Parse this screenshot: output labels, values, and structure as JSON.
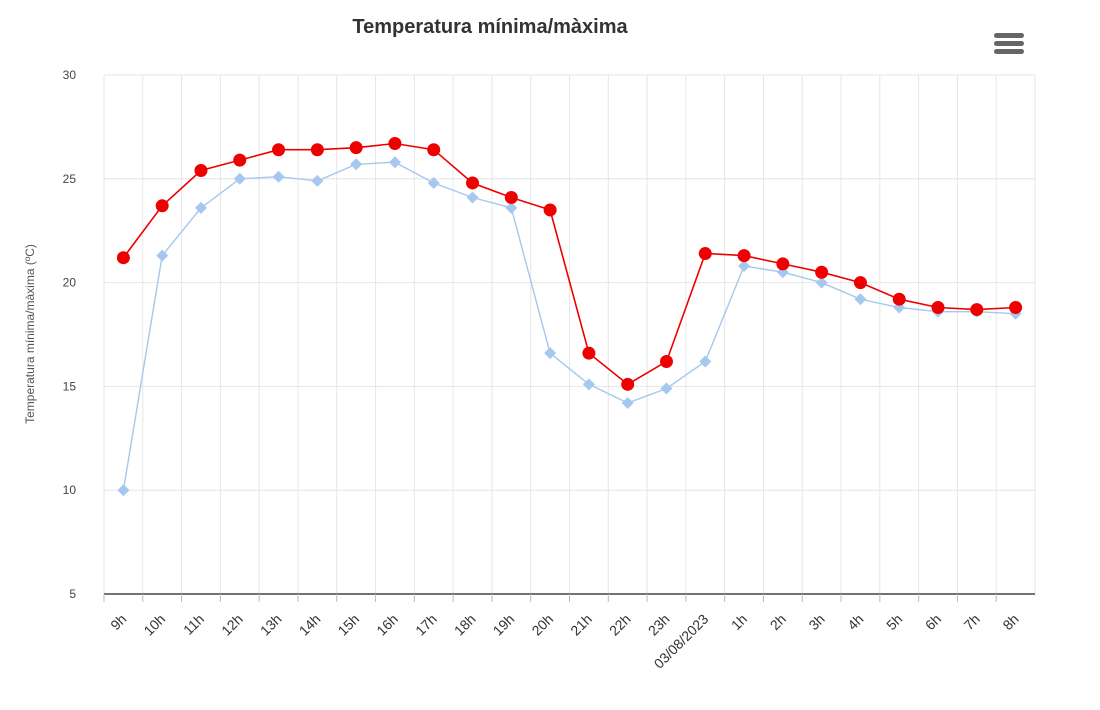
{
  "chart_data": {
    "type": "line",
    "title": "Temperatura mínima/màxima",
    "ylabel": "Temperatura mínima/màxima (ºC)",
    "xlabel": "",
    "ylim": [
      5,
      30
    ],
    "yticks": [
      5,
      10,
      15,
      20,
      25,
      30
    ],
    "grid": true,
    "categories": [
      "9h",
      "10h",
      "11h",
      "12h",
      "13h",
      "14h",
      "15h",
      "16h",
      "17h",
      "18h",
      "19h",
      "20h",
      "21h",
      "22h",
      "23h",
      "03/08/2023",
      "1h",
      "2h",
      "3h",
      "4h",
      "5h",
      "6h",
      "7h",
      "8h"
    ],
    "series": [
      {
        "name": "",
        "color": "#ee0000",
        "marker": "circle",
        "values": [
          21.2,
          23.7,
          25.4,
          25.9,
          26.4,
          26.4,
          26.5,
          26.7,
          26.4,
          24.8,
          24.1,
          23.5,
          16.6,
          15.1,
          16.2,
          21.4,
          21.3,
          20.9,
          20.5,
          20.0,
          19.2,
          18.8,
          18.7,
          18.8
        ]
      },
      {
        "name": "",
        "color": "#a6c8ee",
        "marker": "diamond",
        "values": [
          10.0,
          21.3,
          23.6,
          25.0,
          25.1,
          24.9,
          25.7,
          25.8,
          24.8,
          24.1,
          23.6,
          16.6,
          15.1,
          14.2,
          14.9,
          16.2,
          20.8,
          20.5,
          20.0,
          19.2,
          18.8,
          18.6,
          18.6,
          18.5
        ]
      }
    ]
  }
}
